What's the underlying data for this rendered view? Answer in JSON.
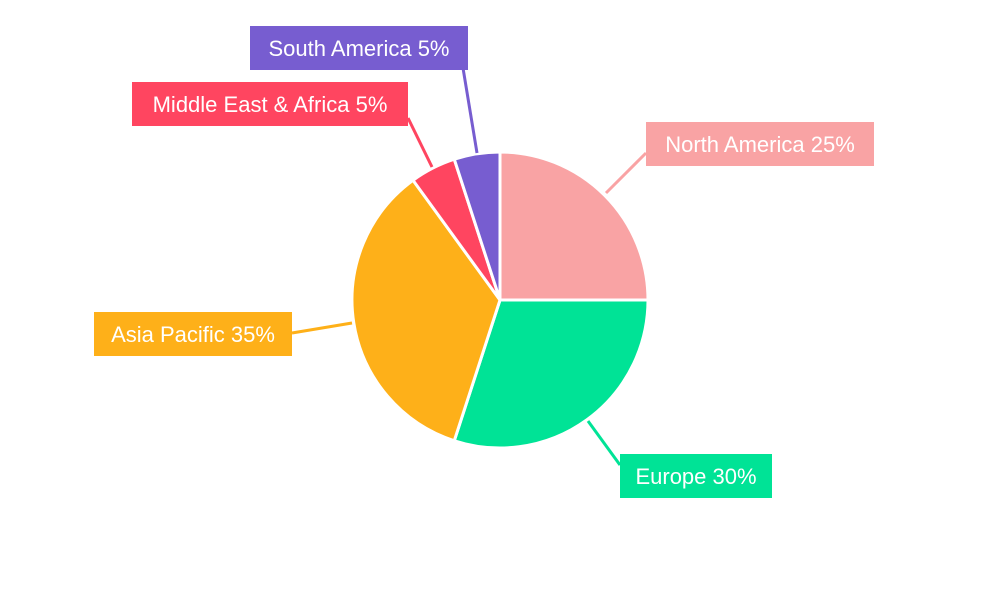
{
  "chart_data": {
    "type": "pie",
    "title": "",
    "start_angle": "top, clockwise",
    "legend": "none",
    "slices": [
      {
        "label": "North America",
        "value": 25,
        "text": "North America 25%",
        "color": "#F9A3A4"
      },
      {
        "label": "Europe",
        "value": 30,
        "text": "Europe 30%",
        "color": "#00E396"
      },
      {
        "label": "Asia Pacific",
        "value": 35,
        "text": "Asia Pacific 35%",
        "color": "#FEB019"
      },
      {
        "label": "Middle East & Africa",
        "value": 5,
        "text": "Middle East & Africa 5%",
        "color": "#FF4560"
      },
      {
        "label": "South America",
        "value": 5,
        "text": "South America 5%",
        "color": "#775DD0"
      }
    ]
  }
}
